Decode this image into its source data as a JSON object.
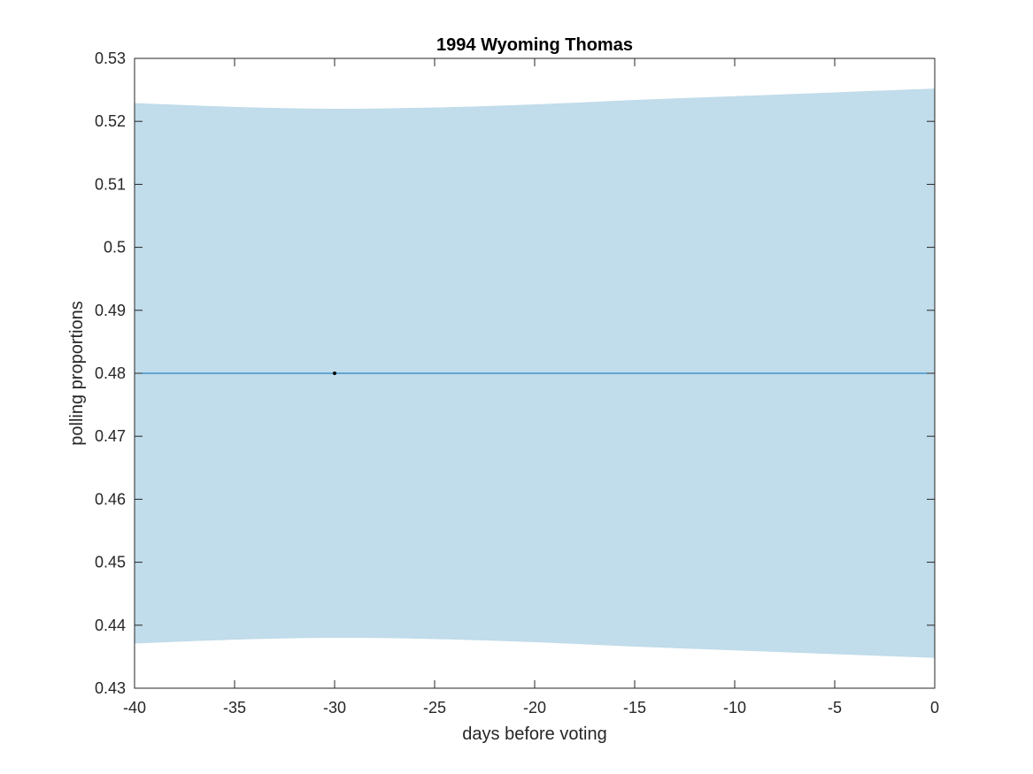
{
  "chart_data": {
    "type": "line",
    "title": "1994 Wyoming Thomas",
    "xlabel": "days before voting",
    "ylabel": "polling proportions",
    "xlim": [
      -40,
      0
    ],
    "ylim": [
      0.43,
      0.53
    ],
    "x_ticks": [
      -40,
      -35,
      -30,
      -25,
      -20,
      -15,
      -10,
      -5,
      0
    ],
    "x_tick_labels": [
      "-40",
      "-35",
      "-30",
      "-25",
      "-20",
      "-15",
      "-10",
      "-5",
      "0"
    ],
    "y_ticks": [
      0.43,
      0.44,
      0.45,
      0.46,
      0.47,
      0.48,
      0.49,
      0.5,
      0.51,
      0.52,
      0.53
    ],
    "y_tick_labels": [
      "0.43",
      "0.44",
      "0.45",
      "0.46",
      "0.47",
      "0.48",
      "0.49",
      "0.5",
      "0.51",
      "0.52",
      "0.53"
    ],
    "grid": false,
    "band": {
      "x": [
        -40,
        -35,
        -30,
        -25,
        -20,
        -15,
        -10,
        -5,
        0
      ],
      "upper": [
        0.5229,
        0.5223,
        0.522,
        0.5222,
        0.5227,
        0.5234,
        0.524,
        0.5246,
        0.5252
      ],
      "lower": [
        0.4371,
        0.4377,
        0.438,
        0.4378,
        0.4373,
        0.4366,
        0.436,
        0.4354,
        0.4348
      ],
      "color": "#c1dcea"
    },
    "series": [
      {
        "x": [
          -40,
          0
        ],
        "values": [
          0.48,
          0.48
        ],
        "color": "#0072bd"
      }
    ],
    "points": [
      {
        "x": -30,
        "y": 0.48,
        "color": "#000000"
      }
    ]
  }
}
